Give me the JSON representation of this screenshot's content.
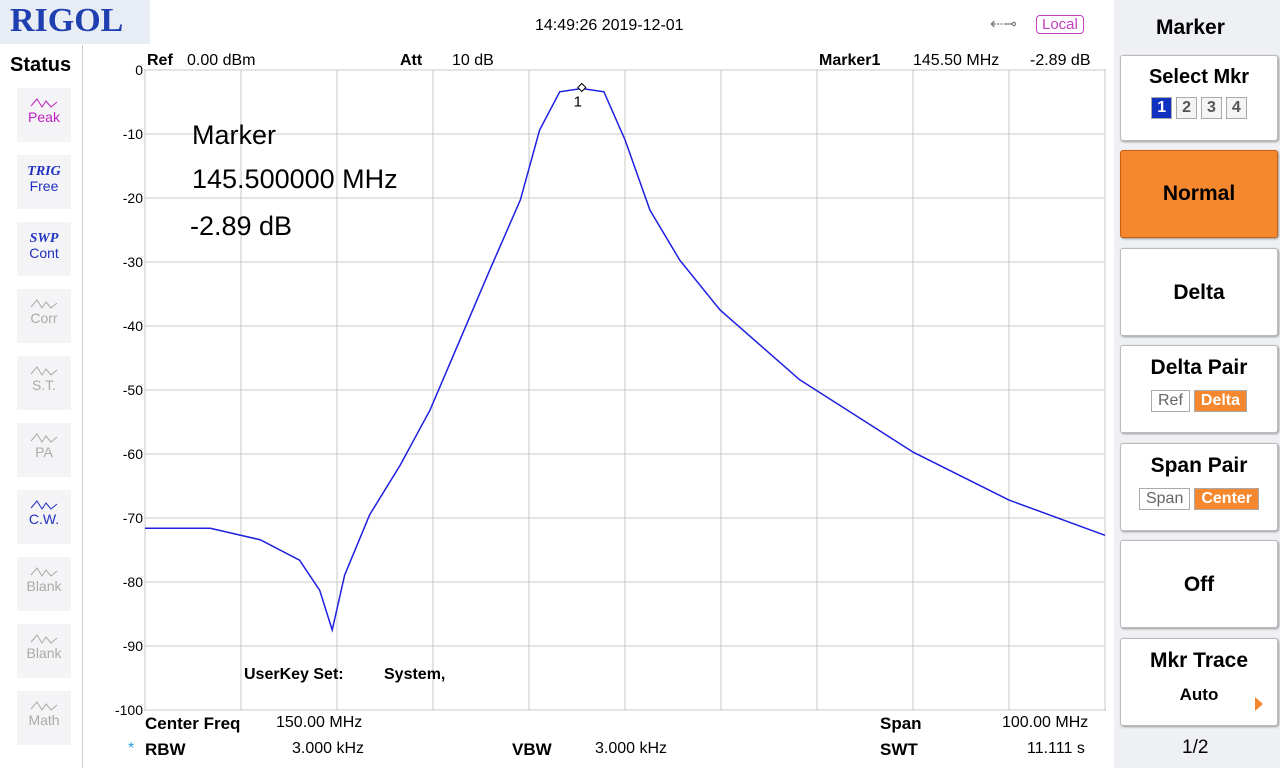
{
  "header": {
    "logo": "RIGOL",
    "datetime": "14:49:26 2019-12-01",
    "mode": "Local"
  },
  "status": {
    "title": "Status",
    "items": [
      {
        "top": null,
        "label": "Peak"
      },
      {
        "top": "TRIG",
        "label": "Free"
      },
      {
        "top": "SWP",
        "label": "Cont"
      },
      {
        "top": null,
        "label": "Corr"
      },
      {
        "top": null,
        "label": "S.T."
      },
      {
        "top": null,
        "label": "PA"
      },
      {
        "top": null,
        "label": "C.W."
      },
      {
        "top": null,
        "label": "Blank"
      },
      {
        "top": null,
        "label": "Blank"
      },
      {
        "top": null,
        "label": "Math"
      }
    ]
  },
  "info_top": {
    "ref_label": "Ref",
    "ref": "0.00 dBm",
    "att_label": "Att",
    "att": "10 dB",
    "marker_label": "Marker1",
    "marker_freq": "145.50 MHz",
    "marker_level": "-2.89 dB"
  },
  "info_bottom": {
    "center_label": "Center Freq",
    "center": "150.00 MHz",
    "span_label": "Span",
    "span": "100.00 MHz",
    "rbw_flag": "*",
    "rbw_label": "RBW",
    "rbw": "3.000 kHz",
    "vbw_label": "VBW",
    "vbw": "3.000 kHz",
    "swt_label": "SWT",
    "swt": "11.111 s"
  },
  "marker_readout": {
    "title": "Marker",
    "freq": "145.500000 MHz",
    "level": "-2.89 dB"
  },
  "userkey": {
    "label": "UserKey Set:",
    "value": "System,"
  },
  "chart_data": {
    "type": "line",
    "color": "#1f1fe0",
    "x": [
      100,
      106.8,
      112,
      116.1,
      118.2,
      119.5,
      120.8,
      123.4,
      126.6,
      129.7,
      132.8,
      135.9,
      139.1,
      141.1,
      143.2,
      145.5,
      147.8,
      150,
      152.6,
      155.7,
      159.9,
      168.2,
      180,
      190,
      200
    ],
    "values": [
      -71.6,
      -71.6,
      -73.4,
      -76.6,
      -81.3,
      -87.5,
      -78.9,
      -69.5,
      -61.7,
      -53.1,
      -42.2,
      -31.3,
      -20.3,
      -9.4,
      -3.4,
      -2.89,
      -3.4,
      -10.9,
      -21.9,
      -29.7,
      -37.5,
      -48.4,
      -59.7,
      -67.2,
      -72.7
    ],
    "xlim": [
      100,
      200
    ],
    "xticks": [
      100,
      110,
      120,
      130,
      140,
      150,
      160,
      170,
      180,
      190,
      200
    ],
    "ylim": [
      -100,
      0
    ],
    "yticks": [
      0,
      -10,
      -20,
      -30,
      -40,
      -50,
      -60,
      -70,
      -80,
      -90,
      -100
    ],
    "grid": true,
    "marker": {
      "x": 145.5,
      "y": -2.89,
      "label": "1"
    }
  },
  "menu": {
    "title": "Marker",
    "select": {
      "label": "Select Mkr",
      "options": [
        "1",
        "2",
        "3",
        "4"
      ]
    },
    "normal": "Normal",
    "delta": "Delta",
    "delta_pair": {
      "label": "Delta Pair",
      "options": [
        "Ref",
        "Delta"
      ]
    },
    "span_pair": {
      "label": "Span Pair",
      "options": [
        "Span",
        "Center"
      ]
    },
    "off": "Off",
    "mkr_trace": {
      "label": "Mkr Trace",
      "value": "Auto"
    },
    "page": "1/2"
  }
}
